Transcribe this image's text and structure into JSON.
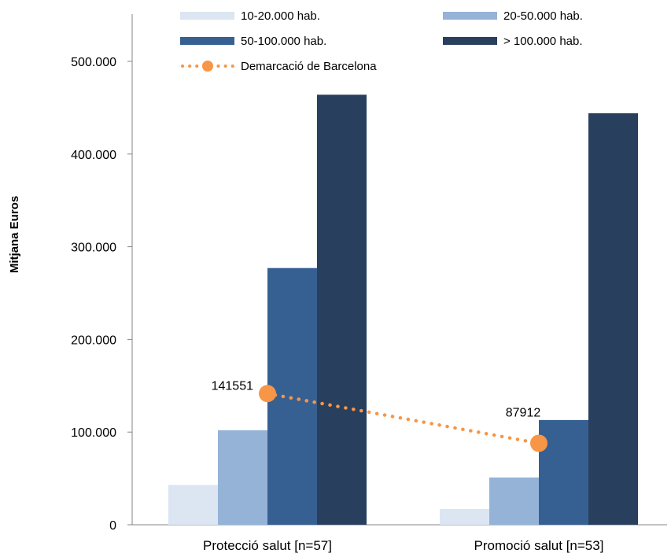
{
  "chart_data": {
    "type": "bar",
    "title": "",
    "xlabel": "",
    "ylabel": "Mitjana Euros",
    "ylim": [
      0,
      500000
    ],
    "yticks": [
      0,
      100000,
      200000,
      300000,
      400000,
      500000
    ],
    "ytick_labels": [
      "0",
      "100.000",
      "200.000",
      "300.000",
      "400.000",
      "500.000"
    ],
    "grid": false,
    "legend_position": "top",
    "categories": [
      "Protecció salut [n=57]",
      "Promoció salut [n=53]"
    ],
    "series": [
      {
        "name": "10-20.000 hab.",
        "color": "#dce6f2",
        "values": [
          43000,
          17000
        ]
      },
      {
        "name": "20-50.000 hab.",
        "color": "#95b3d7",
        "values": [
          102000,
          51000
        ]
      },
      {
        "name": "50-100.000 hab.",
        "color": "#376092",
        "values": [
          277000,
          113000
        ]
      },
      {
        "name": "> 100.000 hab.",
        "color": "#283f5e",
        "values": [
          464000,
          444000
        ]
      }
    ],
    "line_series": {
      "name": "Demarcació de Barcelona",
      "color": "#f79646",
      "values": [
        141551,
        87912
      ],
      "labels": [
        "141551",
        "87912"
      ]
    }
  }
}
